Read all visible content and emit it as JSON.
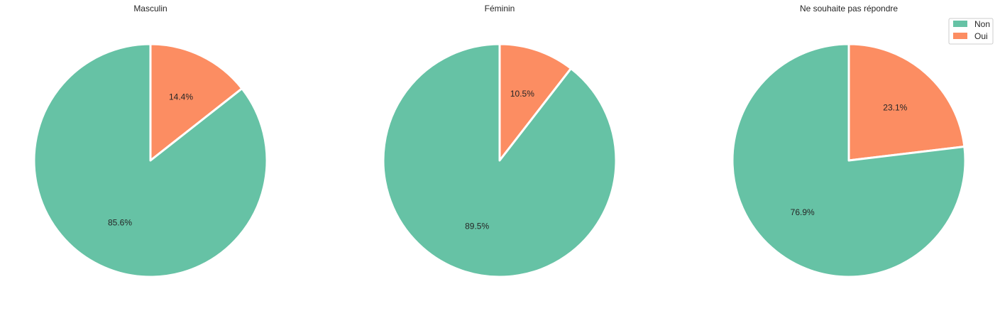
{
  "colors": {
    "Non": "#66c2a5",
    "Oui": "#fc8d62"
  },
  "chart_data": [
    {
      "type": "pie",
      "title": "Masculin",
      "labels": [
        "Non",
        "Oui"
      ],
      "values": [
        85.6,
        14.4
      ],
      "value_labels": [
        "85.6%",
        "14.4%"
      ]
    },
    {
      "type": "pie",
      "title": "Féminin",
      "labels": [
        "Non",
        "Oui"
      ],
      "values": [
        89.5,
        10.5
      ],
      "value_labels": [
        "89.5%",
        "10.5%"
      ]
    },
    {
      "type": "pie",
      "title": "Ne souhaite pas répondre",
      "labels": [
        "Non",
        "Oui"
      ],
      "values": [
        76.9,
        23.1
      ],
      "value_labels": [
        "76.9%",
        "23.1%"
      ]
    }
  ],
  "legend": {
    "placement": "upper right of third chart",
    "items": [
      {
        "label": "Non",
        "color": "#66c2a5"
      },
      {
        "label": "Oui",
        "color": "#fc8d62"
      }
    ]
  }
}
